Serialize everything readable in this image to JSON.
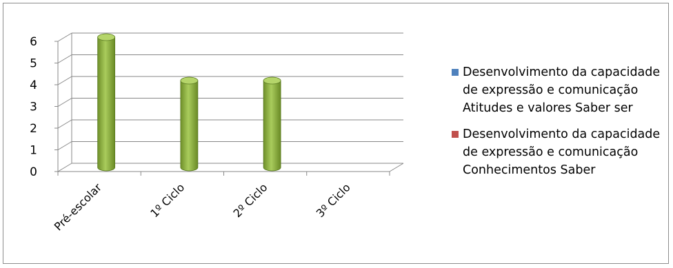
{
  "chart_data": {
    "type": "bar",
    "three_d": true,
    "categories": [
      "Pré-escolar",
      "1º Ciclo",
      "2º Ciclo",
      "3º Ciclo"
    ],
    "series": [
      {
        "name": "Desenvolvimento da capacidade de expressão e comunicação Atitudes e valores Saber ser",
        "color": "#4f81bd",
        "values": [
          0,
          0,
          0,
          0
        ]
      },
      {
        "name": "Desenvolvimento da capacidade de expressão e comunicação Conhecimentos Saber",
        "color": "#c0504d",
        "values": [
          0,
          0,
          0,
          0
        ]
      },
      {
        "name": "",
        "color": "#9bbb59",
        "values": [
          6,
          4,
          4,
          0
        ]
      }
    ],
    "ylim": [
      0,
      6
    ],
    "yticks": [
      "0",
      "1",
      "2",
      "3",
      "4",
      "5",
      "6"
    ],
    "grid": true,
    "legend_position": "right",
    "title": "",
    "xlabel": "",
    "ylabel": ""
  }
}
